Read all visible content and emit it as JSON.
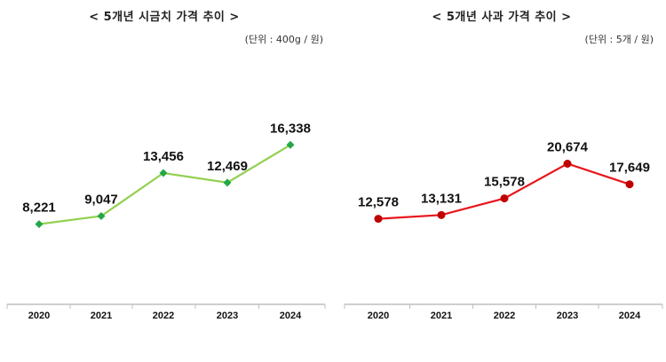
{
  "chart_data": [
    {
      "type": "line",
      "title": "< 5개년 시금치 가격 추이 >",
      "unit": "(단위 : 400g / 원)",
      "categories": [
        "2020",
        "2021",
        "2022",
        "2023",
        "2024"
      ],
      "values": [
        8221,
        9047,
        13456,
        12469,
        16338
      ],
      "labels": [
        "8,221",
        "9,047",
        "13,456",
        "12,469",
        "16,338"
      ],
      "ylim": [
        0,
        23000
      ],
      "line_color": "#92d050",
      "marker_color": "#22a846",
      "marker": "diamond"
    },
    {
      "type": "line",
      "title": "< 5개년 사과 가격 추이 >",
      "unit": "(단위 : 5개 / 원)",
      "categories": [
        "2020",
        "2021",
        "2022",
        "2023",
        "2024"
      ],
      "values": [
        12578,
        13131,
        15578,
        20674,
        17649
      ],
      "labels": [
        "12,578",
        "13,131",
        "15,578",
        "20,674",
        "17,649"
      ],
      "ylim": [
        0,
        33000
      ],
      "line_color": "#e8161b",
      "marker_color": "#c00000",
      "marker": "circle"
    }
  ]
}
